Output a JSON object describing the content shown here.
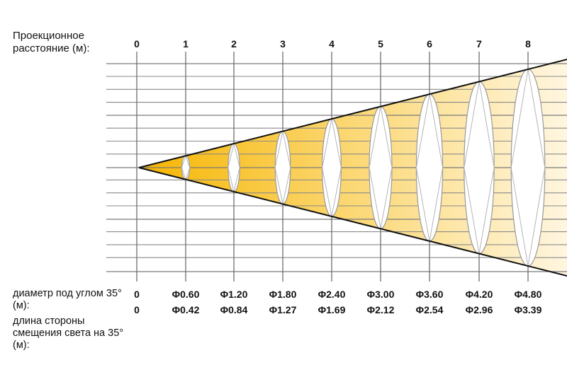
{
  "header_label": "Проекционное расстояние (м):",
  "distances": [
    "0",
    "1",
    "2",
    "3",
    "4",
    "5",
    "6",
    "7",
    "8"
  ],
  "row1_label": "диаметр под углом 35° (м):",
  "row2_label": "длина стороны смещения света на 35° (м):",
  "diameters": [
    "0",
    "Φ0.60",
    "Φ1.20",
    "Φ1.80",
    "Φ2.40",
    "Φ3.00",
    "Φ3.60",
    "Φ4.20",
    "Φ4.80"
  ],
  "side_lengths": [
    "0",
    "Φ0.42",
    "Φ0.84",
    "Φ1.27",
    "Φ1.69",
    "Φ2.12",
    "Φ2.54",
    "Φ2.96",
    "Φ3.39"
  ],
  "colors": {
    "beam_near": "#F7B500",
    "beam_far": "#FFF3D6",
    "grid": "#7a7a7a",
    "outline": "#111111"
  }
}
